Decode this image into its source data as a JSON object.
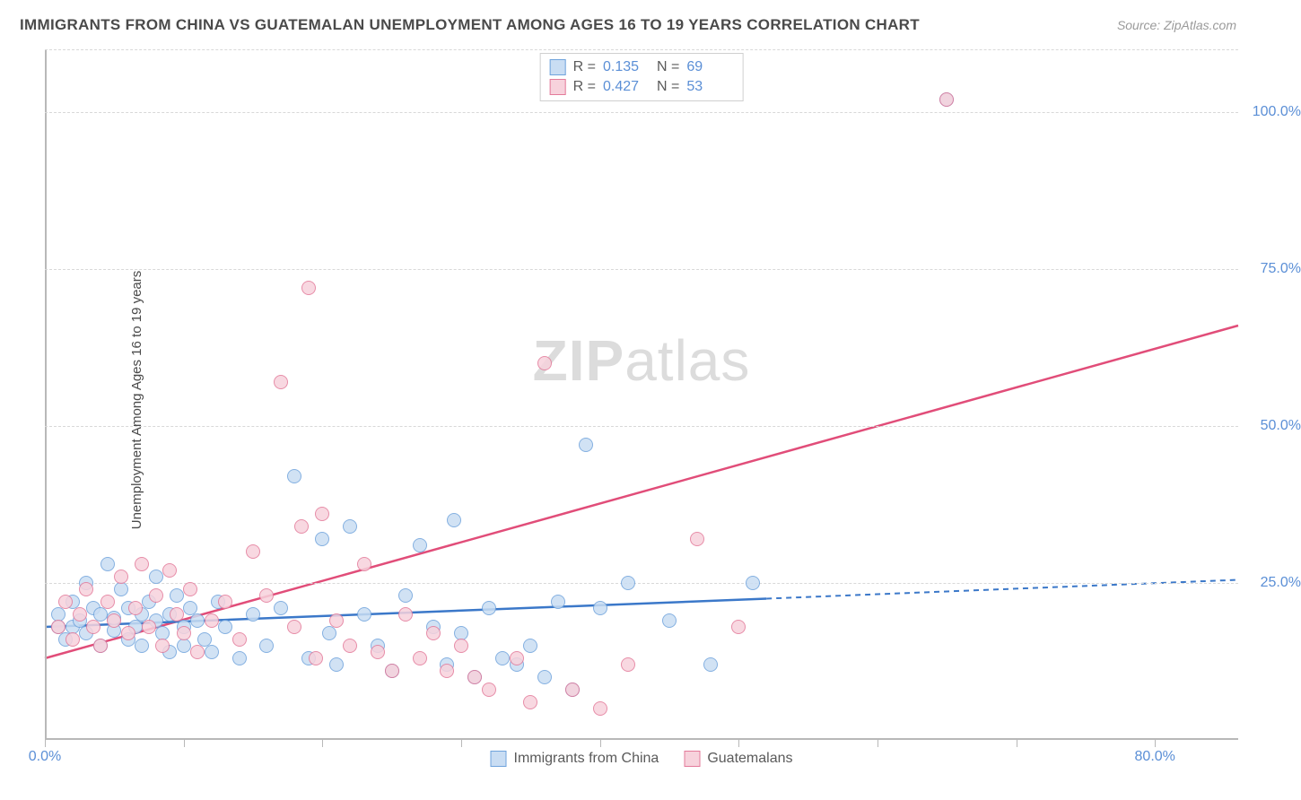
{
  "title": "IMMIGRANTS FROM CHINA VS GUATEMALAN UNEMPLOYMENT AMONG AGES 16 TO 19 YEARS CORRELATION CHART",
  "source": "Source: ZipAtlas.com",
  "ylabel": "Unemployment Among Ages 16 to 19 years",
  "watermark_bold": "ZIP",
  "watermark_rest": "atlas",
  "chart": {
    "type": "scatter",
    "xlim": [
      0,
      86
    ],
    "ylim": [
      0,
      110
    ],
    "x_axis_label_min": "0.0%",
    "x_axis_label_max": "80.0%",
    "x_tick_positions": [
      0,
      10,
      20,
      30,
      40,
      50,
      60,
      70,
      80
    ],
    "y_gridlines": [
      25,
      50,
      75,
      100,
      110
    ],
    "y_tick_labels": {
      "25": "25.0%",
      "50": "50.0%",
      "75": "75.0%",
      "100": "100.0%"
    },
    "background_color": "#ffffff",
    "grid_color": "#d8d8d8",
    "axis_color": "#b8b8b8",
    "tick_label_color": "#5b8fd6",
    "marker_radius": 8,
    "series": [
      {
        "name": "Immigrants from China",
        "fill": "#c9ddf3",
        "stroke": "#6fa3dc",
        "R": "0.135",
        "N": "69",
        "trend": {
          "x1": 0,
          "y1": 18,
          "x2": 52,
          "y2": 22.5,
          "dash_x2": 86,
          "dash_y2": 25.5,
          "color": "#3b78c9",
          "width": 2.5
        },
        "points": [
          [
            1,
            18
          ],
          [
            1,
            20
          ],
          [
            1.5,
            16
          ],
          [
            2,
            22
          ],
          [
            2,
            18
          ],
          [
            2.5,
            19
          ],
          [
            3,
            17
          ],
          [
            3,
            25
          ],
          [
            3.5,
            21
          ],
          [
            4,
            20
          ],
          [
            4,
            15
          ],
          [
            4.5,
            28
          ],
          [
            5,
            17.5
          ],
          [
            5,
            19.5
          ],
          [
            5.5,
            24
          ],
          [
            6,
            16
          ],
          [
            6,
            21
          ],
          [
            6.5,
            18
          ],
          [
            7,
            20
          ],
          [
            7,
            15
          ],
          [
            7.5,
            22
          ],
          [
            8,
            19
          ],
          [
            8,
            26
          ],
          [
            8.5,
            17
          ],
          [
            9,
            14
          ],
          [
            9,
            20
          ],
          [
            9.5,
            23
          ],
          [
            10,
            18
          ],
          [
            10,
            15
          ],
          [
            10.5,
            21
          ],
          [
            11,
            19
          ],
          [
            11.5,
            16
          ],
          [
            12,
            14
          ],
          [
            12.5,
            22
          ],
          [
            13,
            18
          ],
          [
            14,
            13
          ],
          [
            15,
            20
          ],
          [
            16,
            15
          ],
          [
            17,
            21
          ],
          [
            18,
            42
          ],
          [
            19,
            13
          ],
          [
            20,
            32
          ],
          [
            20.5,
            17
          ],
          [
            21,
            12
          ],
          [
            22,
            34
          ],
          [
            23,
            20
          ],
          [
            24,
            15
          ],
          [
            25,
            11
          ],
          [
            26,
            23
          ],
          [
            27,
            31
          ],
          [
            28,
            18
          ],
          [
            29,
            12
          ],
          [
            29.5,
            35
          ],
          [
            30,
            17
          ],
          [
            31,
            10
          ],
          [
            32,
            21
          ],
          [
            33,
            13
          ],
          [
            34,
            12
          ],
          [
            35,
            15
          ],
          [
            36,
            10
          ],
          [
            37,
            22
          ],
          [
            38,
            8
          ],
          [
            39,
            47
          ],
          [
            40,
            21
          ],
          [
            42,
            25
          ],
          [
            45,
            19
          ],
          [
            48,
            12
          ],
          [
            51,
            25
          ],
          [
            65,
            102
          ]
        ]
      },
      {
        "name": "Guatemalans",
        "fill": "#f7d2dc",
        "stroke": "#e37a9a",
        "R": "0.427",
        "N": "53",
        "trend": {
          "x1": 0,
          "y1": 13,
          "x2": 86,
          "y2": 66,
          "color": "#e14d79",
          "width": 2.5
        },
        "points": [
          [
            1,
            18
          ],
          [
            1.5,
            22
          ],
          [
            2,
            16
          ],
          [
            2.5,
            20
          ],
          [
            3,
            24
          ],
          [
            3.5,
            18
          ],
          [
            4,
            15
          ],
          [
            4.5,
            22
          ],
          [
            5,
            19
          ],
          [
            5.5,
            26
          ],
          [
            6,
            17
          ],
          [
            6.5,
            21
          ],
          [
            7,
            28
          ],
          [
            7.5,
            18
          ],
          [
            8,
            23
          ],
          [
            8.5,
            15
          ],
          [
            9,
            27
          ],
          [
            9.5,
            20
          ],
          [
            10,
            17
          ],
          [
            10.5,
            24
          ],
          [
            11,
            14
          ],
          [
            12,
            19
          ],
          [
            13,
            22
          ],
          [
            14,
            16
          ],
          [
            15,
            30
          ],
          [
            16,
            23
          ],
          [
            17,
            57
          ],
          [
            18,
            18
          ],
          [
            18.5,
            34
          ],
          [
            19,
            72
          ],
          [
            19.5,
            13
          ],
          [
            20,
            36
          ],
          [
            21,
            19
          ],
          [
            22,
            15
          ],
          [
            23,
            28
          ],
          [
            24,
            14
          ],
          [
            25,
            11
          ],
          [
            26,
            20
          ],
          [
            27,
            13
          ],
          [
            28,
            17
          ],
          [
            29,
            11
          ],
          [
            30,
            15
          ],
          [
            31,
            10
          ],
          [
            32,
            8
          ],
          [
            34,
            13
          ],
          [
            35,
            6
          ],
          [
            36,
            60
          ],
          [
            38,
            8
          ],
          [
            40,
            5
          ],
          [
            42,
            12
          ],
          [
            47,
            32
          ],
          [
            50,
            18
          ],
          [
            65,
            102
          ]
        ]
      }
    ]
  },
  "legend_top": {
    "r_label": "R =",
    "n_label": "N ="
  },
  "legend_bottom": [
    {
      "swatch_fill": "#c9ddf3",
      "swatch_stroke": "#6fa3dc",
      "label": "Immigrants from China"
    },
    {
      "swatch_fill": "#f7d2dc",
      "swatch_stroke": "#e37a9a",
      "label": "Guatemalans"
    }
  ]
}
